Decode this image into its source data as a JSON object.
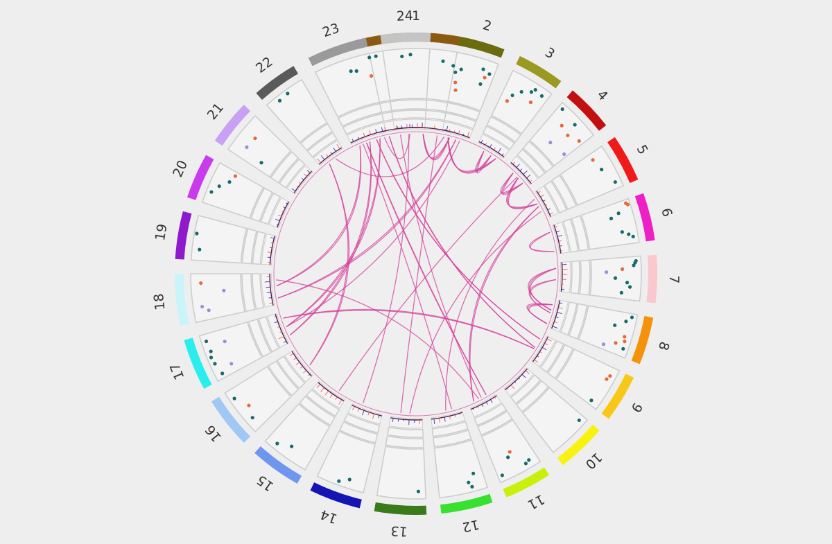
{
  "chart_data": {
    "type": "circos",
    "title": "",
    "legend": "none",
    "chromosomes": [
      {
        "label": "1",
        "color": "#8B5A12"
      },
      {
        "label": "2",
        "color": "#6B6B10"
      },
      {
        "label": "3",
        "color": "#9A9A22"
      },
      {
        "label": "4",
        "color": "#C21010"
      },
      {
        "label": "5",
        "color": "#F01A1A"
      },
      {
        "label": "6",
        "color": "#EE1FC4"
      },
      {
        "label": "7",
        "color": "#F9C8CC"
      },
      {
        "label": "8",
        "color": "#F4920A"
      },
      {
        "label": "9",
        "color": "#F8C818"
      },
      {
        "label": "10",
        "color": "#F8F210"
      },
      {
        "label": "11",
        "color": "#C8F00A"
      },
      {
        "label": "12",
        "color": "#38E030"
      },
      {
        "label": "13",
        "color": "#3A7A1A"
      },
      {
        "label": "14",
        "color": "#1414B4"
      },
      {
        "label": "15",
        "color": "#6E96EE"
      },
      {
        "label": "16",
        "color": "#A0C8F4"
      },
      {
        "label": "17",
        "color": "#2AEEEE"
      },
      {
        "label": "18",
        "color": "#C8F4FA"
      },
      {
        "label": "19",
        "color": "#8E1ACC"
      },
      {
        "label": "20",
        "color": "#C83CEE"
      },
      {
        "label": "21",
        "color": "#C8A0F4"
      },
      {
        "label": "22",
        "color": "#5A5A5A"
      },
      {
        "label": "23",
        "color": "#9A9A9A"
      },
      {
        "label": "24",
        "color": "#C4C4C4"
      }
    ],
    "scatter_points": [
      {
        "chrom": 0,
        "pos": 0.08,
        "r": 0.92,
        "cls": "teal"
      },
      {
        "chrom": 0,
        "pos": 0.14,
        "r": 0.92,
        "cls": "teal"
      },
      {
        "chrom": 0,
        "pos": 0.45,
        "r": 0.88,
        "cls": "teal"
      },
      {
        "chrom": 0,
        "pos": 0.75,
        "r": 0.78,
        "cls": "teal"
      },
      {
        "chrom": 0,
        "pos": 0.85,
        "r": 0.72,
        "cls": "teal"
      },
      {
        "chrom": 0,
        "pos": 0.93,
        "r": 0.68,
        "cls": "teal"
      },
      {
        "chrom": 1,
        "pos": 0.05,
        "r": 0.6,
        "cls": "teal"
      },
      {
        "chrom": 1,
        "pos": 0.1,
        "r": 0.4,
        "cls": "orange"
      },
      {
        "chrom": 1,
        "pos": 0.15,
        "r": 0.25,
        "cls": "orange"
      },
      {
        "chrom": 1,
        "pos": 0.7,
        "r": 0.8,
        "cls": "teal"
      },
      {
        "chrom": 1,
        "pos": 0.75,
        "r": 0.5,
        "cls": "teal"
      },
      {
        "chrom": 1,
        "pos": 0.8,
        "r": 0.65,
        "cls": "orange"
      },
      {
        "chrom": 1,
        "pos": 0.88,
        "r": 0.75,
        "cls": "teal"
      },
      {
        "chrom": 2,
        "pos": 0.2,
        "r": 0.4,
        "cls": "orange"
      },
      {
        "chrom": 2,
        "pos": 0.25,
        "r": 0.55,
        "cls": "teal"
      },
      {
        "chrom": 2,
        "pos": 0.4,
        "r": 0.7,
        "cls": "teal"
      },
      {
        "chrom": 2,
        "pos": 0.6,
        "r": 0.8,
        "cls": "teal"
      },
      {
        "chrom": 2,
        "pos": 0.65,
        "r": 0.88,
        "cls": "teal"
      },
      {
        "chrom": 2,
        "pos": 0.72,
        "r": 0.62,
        "cls": "orange"
      },
      {
        "chrom": 2,
        "pos": 0.85,
        "r": 0.85,
        "cls": "teal"
      },
      {
        "chrom": 3,
        "pos": 0.1,
        "r": 0.9,
        "cls": "teal"
      },
      {
        "chrom": 3,
        "pos": 0.35,
        "r": 0.65,
        "cls": "orange"
      },
      {
        "chrom": 3,
        "pos": 0.45,
        "r": 0.25,
        "cls": "lilac"
      },
      {
        "chrom": 3,
        "pos": 0.55,
        "r": 0.85,
        "cls": "teal"
      },
      {
        "chrom": 3,
        "pos": 0.62,
        "r": 0.6,
        "cls": "orange"
      },
      {
        "chrom": 3,
        "pos": 0.9,
        "r": 0.7,
        "cls": "orange"
      },
      {
        "chrom": 3,
        "pos": 0.92,
        "r": 0.3,
        "cls": "lilac"
      },
      {
        "chrom": 4,
        "pos": 0.15,
        "r": 0.7,
        "cls": "orange"
      },
      {
        "chrom": 4,
        "pos": 0.45,
        "r": 0.75,
        "cls": "teal"
      },
      {
        "chrom": 4,
        "pos": 0.85,
        "r": 0.88,
        "cls": "teal"
      },
      {
        "chrom": 5,
        "pos": 0.08,
        "r": 0.92,
        "cls": "orange"
      },
      {
        "chrom": 5,
        "pos": 0.12,
        "r": 0.95,
        "cls": "orange"
      },
      {
        "chrom": 5,
        "pos": 0.25,
        "r": 0.72,
        "cls": "teal"
      },
      {
        "chrom": 5,
        "pos": 0.32,
        "r": 0.55,
        "cls": "teal"
      },
      {
        "chrom": 5,
        "pos": 0.7,
        "r": 0.7,
        "cls": "teal"
      },
      {
        "chrom": 5,
        "pos": 0.78,
        "r": 0.82,
        "cls": "teal"
      },
      {
        "chrom": 5,
        "pos": 0.85,
        "r": 0.9,
        "cls": "teal"
      },
      {
        "chrom": 6,
        "pos": 0.1,
        "r": 0.9,
        "cls": "teal"
      },
      {
        "chrom": 6,
        "pos": 0.14,
        "r": 0.88,
        "cls": "teal"
      },
      {
        "chrom": 6,
        "pos": 0.2,
        "r": 0.85,
        "cls": "teal"
      },
      {
        "chrom": 6,
        "pos": 0.28,
        "r": 0.62,
        "cls": "orange"
      },
      {
        "chrom": 6,
        "pos": 0.35,
        "r": 0.3,
        "cls": "lilac"
      },
      {
        "chrom": 6,
        "pos": 0.5,
        "r": 0.48,
        "cls": "teal"
      },
      {
        "chrom": 6,
        "pos": 0.6,
        "r": 0.72,
        "cls": "teal"
      },
      {
        "chrom": 6,
        "pos": 0.7,
        "r": 0.78,
        "cls": "teal"
      },
      {
        "chrom": 6,
        "pos": 0.85,
        "r": 0.62,
        "cls": "teal"
      },
      {
        "chrom": 7,
        "pos": 0.08,
        "r": 0.9,
        "cls": "teal"
      },
      {
        "chrom": 7,
        "pos": 0.2,
        "r": 0.8,
        "cls": "teal"
      },
      {
        "chrom": 7,
        "pos": 0.35,
        "r": 0.6,
        "cls": "teal"
      },
      {
        "chrom": 7,
        "pos": 0.55,
        "r": 0.85,
        "cls": "orange"
      },
      {
        "chrom": 7,
        "pos": 0.65,
        "r": 0.88,
        "cls": "orange"
      },
      {
        "chrom": 7,
        "pos": 0.75,
        "r": 0.72,
        "cls": "orange"
      },
      {
        "chrom": 7,
        "pos": 0.82,
        "r": 0.9,
        "cls": "teal"
      },
      {
        "chrom": 7,
        "pos": 0.88,
        "r": 0.5,
        "cls": "lilac"
      },
      {
        "chrom": 8,
        "pos": 0.2,
        "r": 0.88,
        "cls": "orange"
      },
      {
        "chrom": 8,
        "pos": 0.3,
        "r": 0.85,
        "cls": "orange"
      },
      {
        "chrom": 8,
        "pos": 0.9,
        "r": 0.82,
        "cls": "teal"
      },
      {
        "chrom": 9,
        "pos": 0.12,
        "r": 0.88,
        "cls": "teal"
      },
      {
        "chrom": 10,
        "pos": 0.2,
        "r": 0.85,
        "cls": "teal"
      },
      {
        "chrom": 10,
        "pos": 0.3,
        "r": 0.88,
        "cls": "teal"
      },
      {
        "chrom": 10,
        "pos": 0.5,
        "r": 0.52,
        "cls": "orange"
      },
      {
        "chrom": 10,
        "pos": 0.6,
        "r": 0.6,
        "cls": "teal"
      },
      {
        "chrom": 10,
        "pos": 0.9,
        "r": 0.88,
        "cls": "teal"
      },
      {
        "chrom": 11,
        "pos": 0.2,
        "r": 0.65,
        "cls": "teal"
      },
      {
        "chrom": 11,
        "pos": 0.3,
        "r": 0.9,
        "cls": "teal"
      },
      {
        "chrom": 11,
        "pos": 0.35,
        "r": 0.8,
        "cls": "teal"
      },
      {
        "chrom": 12,
        "pos": 0.15,
        "r": 0.85,
        "cls": "teal"
      },
      {
        "chrom": 13,
        "pos": 0.35,
        "r": 0.82,
        "cls": "teal"
      },
      {
        "chrom": 13,
        "pos": 0.55,
        "r": 0.92,
        "cls": "teal"
      },
      {
        "chrom": 14,
        "pos": 0.5,
        "r": 0.75,
        "cls": "teal"
      },
      {
        "chrom": 14,
        "pos": 0.78,
        "r": 0.88,
        "cls": "teal"
      },
      {
        "chrom": 15,
        "pos": 0.25,
        "r": 0.85,
        "cls": "teal"
      },
      {
        "chrom": 15,
        "pos": 0.5,
        "r": 0.75,
        "cls": "orange"
      },
      {
        "chrom": 15,
        "pos": 0.8,
        "r": 0.9,
        "cls": "teal"
      },
      {
        "chrom": 16,
        "pos": 0.1,
        "r": 0.85,
        "cls": "teal"
      },
      {
        "chrom": 16,
        "pos": 0.2,
        "r": 0.6,
        "cls": "lilac"
      },
      {
        "chrom": 16,
        "pos": 0.35,
        "r": 0.9,
        "cls": "teal"
      },
      {
        "chrom": 16,
        "pos": 0.5,
        "r": 0.92,
        "cls": "teal"
      },
      {
        "chrom": 16,
        "pos": 0.62,
        "r": 0.88,
        "cls": "teal"
      },
      {
        "chrom": 16,
        "pos": 0.72,
        "r": 0.55,
        "cls": "lilac"
      },
      {
        "chrom": 16,
        "pos": 0.85,
        "r": 0.9,
        "cls": "teal"
      },
      {
        "chrom": 17,
        "pos": 0.2,
        "r": 0.7,
        "cls": "lilac"
      },
      {
        "chrom": 17,
        "pos": 0.3,
        "r": 0.82,
        "cls": "lilac"
      },
      {
        "chrom": 17,
        "pos": 0.8,
        "r": 0.8,
        "cls": "orange"
      },
      {
        "chrom": 17,
        "pos": 0.6,
        "r": 0.35,
        "cls": "lilac"
      },
      {
        "chrom": 18,
        "pos": 0.25,
        "r": 0.85,
        "cls": "teal"
      },
      {
        "chrom": 18,
        "pos": 0.6,
        "r": 0.95,
        "cls": "teal"
      },
      {
        "chrom": 19,
        "pos": 0.3,
        "r": 0.9,
        "cls": "teal"
      },
      {
        "chrom": 19,
        "pos": 0.5,
        "r": 0.8,
        "cls": "teal"
      },
      {
        "chrom": 19,
        "pos": 0.7,
        "r": 0.65,
        "cls": "teal"
      },
      {
        "chrom": 19,
        "pos": 0.9,
        "r": 0.6,
        "cls": "orange"
      },
      {
        "chrom": 20,
        "pos": 0.3,
        "r": 0.72,
        "cls": "lilac"
      },
      {
        "chrom": 20,
        "pos": 0.6,
        "r": 0.7,
        "cls": "orange"
      },
      {
        "chrom": 20,
        "pos": 0.2,
        "r": 0.3,
        "cls": "teal"
      },
      {
        "chrom": 21,
        "pos": 0.3,
        "r": 0.9,
        "cls": "teal"
      },
      {
        "chrom": 21,
        "pos": 0.55,
        "r": 0.92,
        "cls": "teal"
      },
      {
        "chrom": 22,
        "pos": 0.6,
        "r": 0.75,
        "cls": "teal"
      },
      {
        "chrom": 22,
        "pos": 0.7,
        "r": 0.72,
        "cls": "teal"
      },
      {
        "chrom": 22,
        "pos": 0.95,
        "r": 0.55,
        "cls": "orange"
      },
      {
        "chrom": 23,
        "pos": 0.4,
        "r": 0.85,
        "cls": "teal"
      }
    ],
    "links": [
      {
        "a": [
          0,
          0.12
        ],
        "b": [
          8,
          0.55
        ],
        "band": 2
      },
      {
        "a": [
          0,
          0.6
        ],
        "b": [
          1,
          0.3
        ],
        "band": 3
      },
      {
        "a": [
          0,
          0.4
        ],
        "b": [
          13,
          0.7
        ],
        "band": 1
      },
      {
        "a": [
          0,
          0.28
        ],
        "b": [
          10,
          0.5
        ],
        "band": 1
      },
      {
        "a": [
          1,
          0.25
        ],
        "b": [
          2,
          0.8
        ],
        "band": 3
      },
      {
        "a": [
          1,
          0.7
        ],
        "b": [
          16,
          0.5
        ],
        "band": 1
      },
      {
        "a": [
          1,
          0.55
        ],
        "b": [
          17,
          0.2
        ],
        "band": 2
      },
      {
        "a": [
          2,
          0.3
        ],
        "b": [
          2,
          0.6
        ],
        "band": 3
      },
      {
        "a": [
          3,
          0.3
        ],
        "b": [
          3,
          0.8
        ],
        "band": 3
      },
      {
        "a": [
          3,
          0.55
        ],
        "b": [
          4,
          0.4
        ],
        "band": 3
      },
      {
        "a": [
          4,
          0.5
        ],
        "b": [
          10,
          0.8
        ],
        "band": 2
      },
      {
        "a": [
          5,
          0.2
        ],
        "b": [
          5,
          0.9
        ],
        "band": 2
      },
      {
        "a": [
          6,
          0.6
        ],
        "b": [
          7,
          0.5
        ],
        "band": 2
      },
      {
        "a": [
          7,
          0.2
        ],
        "b": [
          7,
          0.9
        ],
        "band": 3
      },
      {
        "a": [
          7,
          0.4
        ],
        "b": [
          6,
          0.2
        ],
        "band": 3
      },
      {
        "a": [
          8,
          0.2
        ],
        "b": [
          22,
          0.7
        ],
        "band": 2
      },
      {
        "a": [
          8,
          0.6
        ],
        "b": [
          16,
          0.8
        ],
        "band": 2
      },
      {
        "a": [
          11,
          0.3
        ],
        "b": [
          22,
          0.3
        ],
        "band": 1
      },
      {
        "a": [
          11,
          0.5
        ],
        "b": [
          4,
          0.2
        ],
        "band": 1
      },
      {
        "a": [
          12,
          0.4
        ],
        "b": [
          4,
          0.7
        ],
        "band": 1
      },
      {
        "a": [
          12,
          0.7
        ],
        "b": [
          0,
          0.8
        ],
        "band": 1
      },
      {
        "a": [
          15,
          0.3
        ],
        "b": [
          21,
          0.3
        ],
        "band": 2
      },
      {
        "a": [
          16,
          0.2
        ],
        "b": [
          22,
          0.5
        ],
        "band": 2
      },
      {
        "a": [
          17,
          0.6
        ],
        "b": [
          22,
          0.2
        ],
        "band": 2
      },
      {
        "a": [
          16,
          0.5
        ],
        "b": [
          22,
          0.8
        ],
        "band": 2
      },
      {
        "a": [
          21,
          0.6
        ],
        "b": [
          1,
          0.1
        ],
        "band": 1
      },
      {
        "a": [
          22,
          0.4
        ],
        "b": [
          10,
          0.3
        ],
        "band": 2
      },
      {
        "a": [
          23,
          0.5
        ],
        "b": [
          0,
          0.05
        ],
        "band": 1
      },
      {
        "a": [
          14,
          0.3
        ],
        "b": [
          3,
          0.5
        ],
        "band": 1
      },
      {
        "a": [
          10,
          0.6
        ],
        "b": [
          17,
          0.8
        ],
        "band": 1
      }
    ],
    "track_colors": {
      "teal": "#176B6B",
      "orange": "#E8683A",
      "lilac": "#9C8EDC",
      "link": "#D63C9A",
      "frame_fill": "#F4F4F4",
      "frame_stroke": "#CDCDCD",
      "gain": "#E84A4A",
      "loss": "#1A1AB0",
      "baseline": "#5A1A4A"
    }
  }
}
